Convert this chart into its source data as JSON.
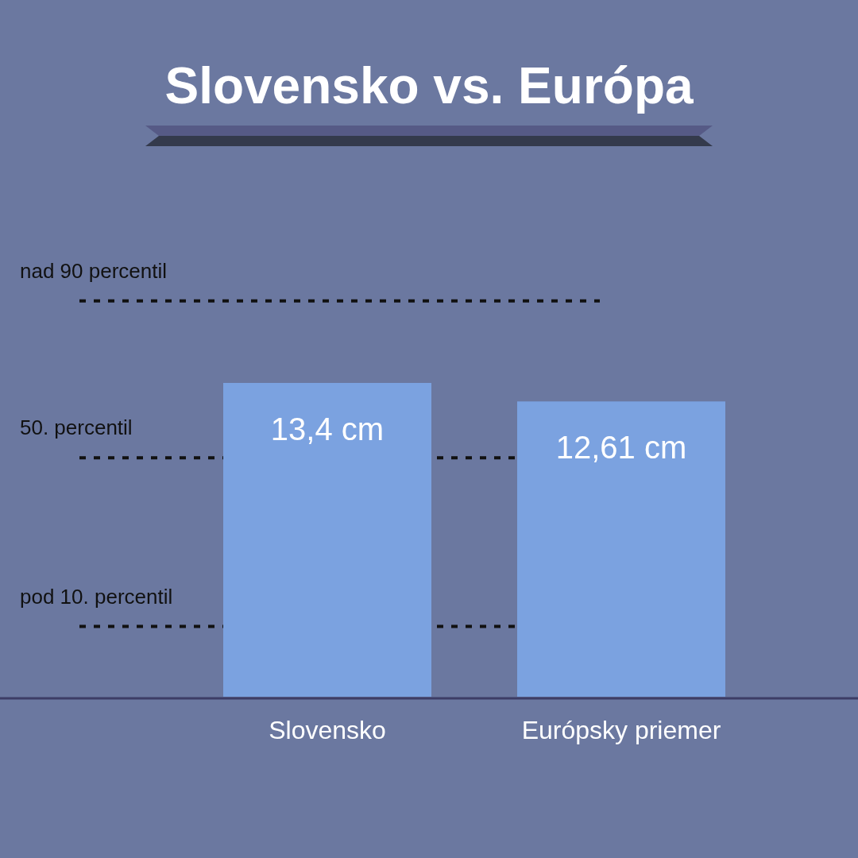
{
  "chart_data": {
    "type": "bar",
    "title": "Slovensko vs. Európa",
    "categories": [
      "Slovensko",
      "Európsky priemer"
    ],
    "values": [
      13.4,
      12.61
    ],
    "color": "#7ba2e0",
    "value_labels": [
      "13,4 cm",
      "12,61 cm"
    ],
    "tick_labels": "x",
    "ref_lines": [
      {
        "axis": "y",
        "value": 16.9,
        "label": "nad 90 percentil",
        "line_style": "dotted",
        "color": "#111111"
      },
      {
        "axis": "y",
        "value": 10.2,
        "label": "50. percentil",
        "line_style": "dotted",
        "color": "#111111"
      },
      {
        "axis": "y",
        "value": 3.0,
        "label": "pod 10. percentil",
        "line_style": "dotted",
        "color": "#111111"
      }
    ]
  }
}
